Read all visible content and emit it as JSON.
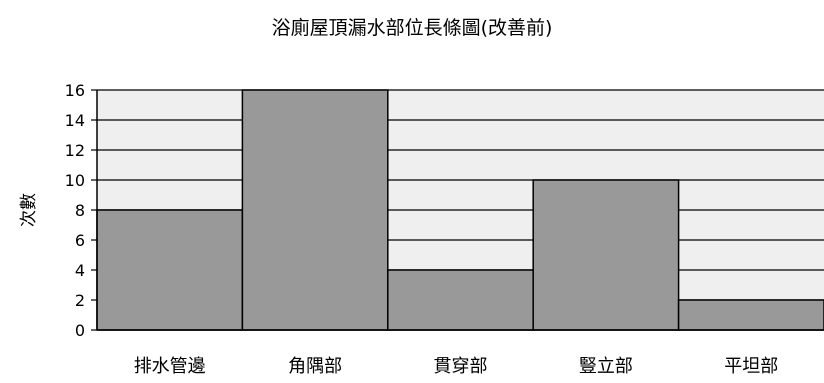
{
  "chart_data": {
    "type": "bar",
    "title": "浴廁屋頂漏水部位長條圖(改善前)",
    "ylabel": "次數",
    "xlabel": "",
    "categories": [
      "排水管邊",
      "角隅部",
      "貫穿部",
      "豎立部",
      "平坦部"
    ],
    "values": [
      8,
      16,
      4,
      10,
      2
    ],
    "ylim": [
      0,
      16
    ],
    "yticks": [
      "0",
      "2",
      "4",
      "6",
      "8",
      "10",
      "12",
      "14",
      "16"
    ],
    "grid": true,
    "legend": "none",
    "colors": {
      "bar": "#999999",
      "plot_background": "#efefef",
      "gridline": "#000000",
      "bar_border": "#000000"
    }
  }
}
